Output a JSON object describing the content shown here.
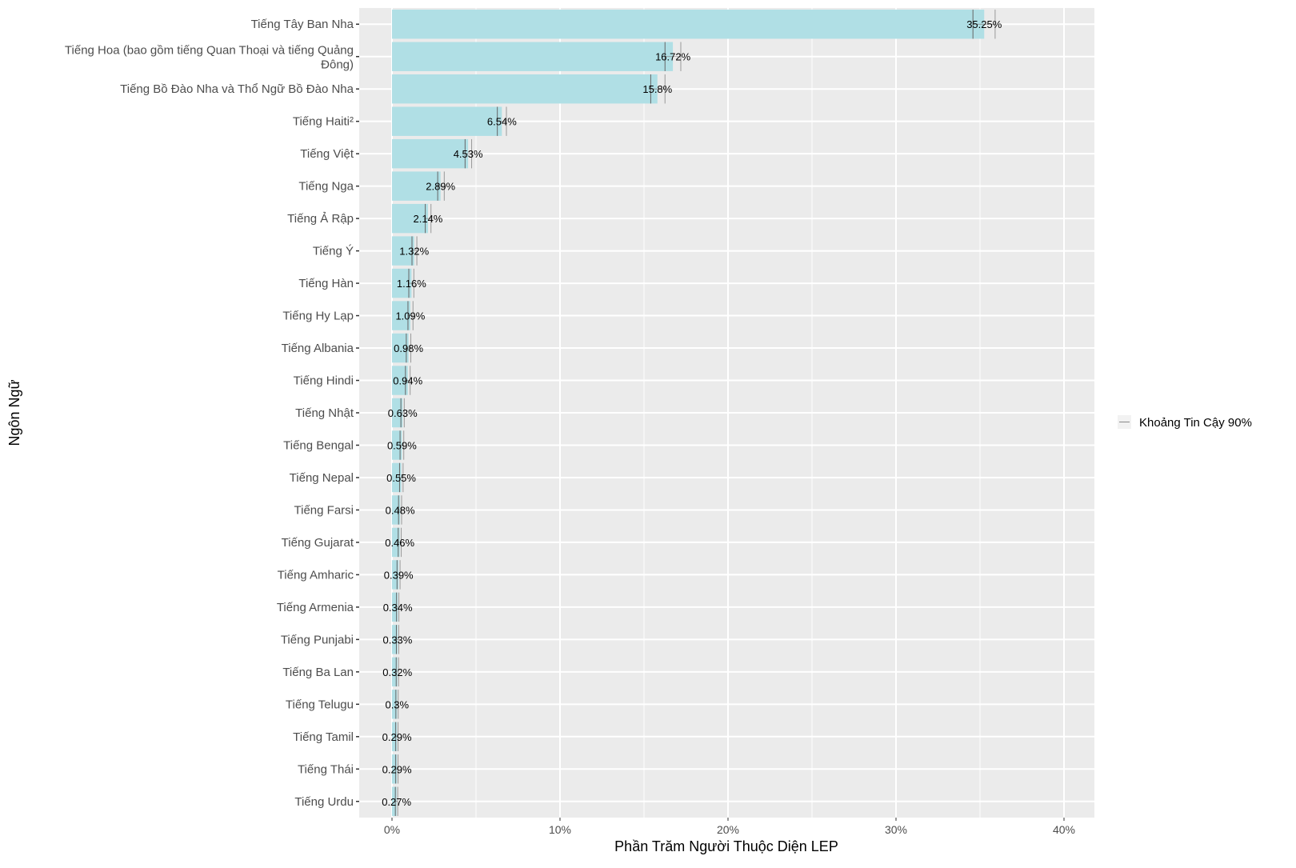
{
  "chart_data": {
    "type": "bar",
    "orientation": "horizontal",
    "xlabel": "Phần Trăm Người Thuộc Diện LEP",
    "ylabel": "Ngôn Ngữ",
    "xlim": [
      -2,
      42
    ],
    "x_ticks": [
      0,
      10,
      20,
      30,
      40
    ],
    "x_tick_labels": [
      "0%",
      "10%",
      "20%",
      "30%",
      "40%"
    ],
    "grid": true,
    "legend": {
      "position": "right",
      "entries": [
        "Khoảng Tin Cậy 90%"
      ]
    },
    "colors": {
      "bar": "#b0dfe5",
      "panel": "#ebebeb",
      "grid": "#ffffff",
      "ci_low": "#666666",
      "ci_high": "#999999"
    },
    "categories": [
      "Tiếng Tây Ban Nha",
      "Tiếng Hoa (bao gồm tiếng Quan Thoại và tiếng Quảng\nĐông)",
      "Tiếng Bồ Đào Nha và Thổ Ngữ Bồ Đào Nha",
      "Tiếng Haiti²",
      "Tiếng Việt",
      "Tiếng Nga",
      "Tiếng Ả Rập",
      "Tiếng Ý",
      "Tiếng Hàn",
      "Tiếng Hy Lạp",
      "Tiếng Albania",
      "Tiếng Hindi",
      "Tiếng Nhật",
      "Tiếng Bengal",
      "Tiếng Nepal",
      "Tiếng Farsi",
      "Tiếng Gujarat",
      "Tiếng Amharic",
      "Tiếng Armenia",
      "Tiếng Punjabi",
      "Tiếng Ba Lan",
      "Tiếng Telugu",
      "Tiếng Tamil",
      "Tiếng Thái",
      "Tiếng Urdu"
    ],
    "values": [
      35.25,
      16.72,
      15.8,
      6.54,
      4.53,
      2.89,
      2.14,
      1.32,
      1.16,
      1.09,
      0.98,
      0.94,
      0.63,
      0.59,
      0.55,
      0.48,
      0.46,
      0.39,
      0.34,
      0.33,
      0.32,
      0.3,
      0.29,
      0.29,
      0.27
    ],
    "value_labels": [
      "35.25%",
      "16.72%",
      "15.8%",
      "6.54%",
      "4.53%",
      "2.89%",
      "2.14%",
      "1.32%",
      "1.16%",
      "1.09%",
      "0.98%",
      "0.94%",
      "0.63%",
      "0.59%",
      "0.55%",
      "0.48%",
      "0.46%",
      "0.39%",
      "0.34%",
      "0.33%",
      "0.32%",
      "0.3%",
      "0.29%",
      "0.29%",
      "0.27%"
    ],
    "ci_lower": [
      34.58,
      16.25,
      15.4,
      6.27,
      4.35,
      2.72,
      1.98,
      1.19,
      1.0,
      0.95,
      0.85,
      0.8,
      0.53,
      0.48,
      0.45,
      0.39,
      0.37,
      0.3,
      0.27,
      0.26,
      0.25,
      0.23,
      0.22,
      0.22,
      0.2
    ],
    "ci_upper": [
      35.9,
      17.19,
      16.25,
      6.81,
      4.74,
      3.11,
      2.32,
      1.48,
      1.3,
      1.25,
      1.12,
      1.08,
      0.73,
      0.7,
      0.66,
      0.57,
      0.55,
      0.48,
      0.41,
      0.4,
      0.39,
      0.37,
      0.36,
      0.36,
      0.34
    ]
  }
}
